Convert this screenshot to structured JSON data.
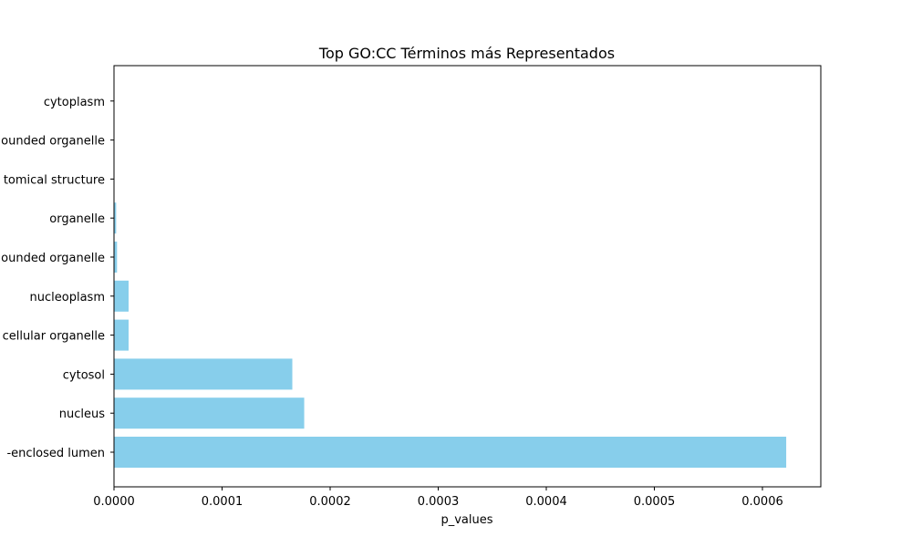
{
  "chart_data": {
    "type": "bar",
    "orientation": "horizontal",
    "title": "Top GO:CC Términos más Representados",
    "xlabel": "p_values",
    "ylabel": "",
    "categories": [
      "-enclosed lumen",
      "nucleus",
      "cytosol",
      "cellular organelle",
      "nucleoplasm",
      "ounded organelle",
      "organelle",
      "tomical structure",
      "ounded organelle",
      "cytoplasm"
    ],
    "values": [
      0.000622,
      0.000176,
      0.000165,
      1.35e-05,
      1.35e-05,
      2.8e-06,
      2e-06,
      2e-07,
      1e-07,
      5e-08
    ],
    "xlim": [
      0,
      0.000654
    ],
    "xticks": [
      "0.0000",
      "0.0001",
      "0.0002",
      "0.0003",
      "0.0004",
      "0.0005",
      "0.0006"
    ],
    "xtick_values": [
      0,
      0.0001,
      0.0002,
      0.0003,
      0.0004,
      0.0005,
      0.0006
    ],
    "grid": false,
    "bar_color": "#87ceeb"
  }
}
